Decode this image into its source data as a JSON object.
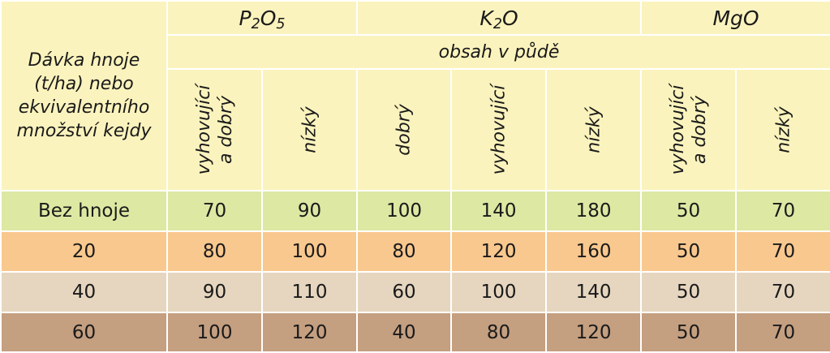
{
  "corner_label": [
    "Dávka hnoje",
    "(t/ha) nebo",
    "ekvivalentního",
    "množství kejdy"
  ],
  "nutrients": {
    "p2o5": {
      "base": "P",
      "sub1": "2",
      "mid": "O",
      "sub2": "5"
    },
    "k2o": {
      "base": "K",
      "sub1": "2",
      "mid": "O"
    },
    "mgo": {
      "label": "MgO"
    }
  },
  "subheader": "obsah v půdě",
  "columns": [
    [
      "vyhovující",
      "a dobrý"
    ],
    [
      "nízký"
    ],
    [
      "dobrý"
    ],
    [
      "vyhovující"
    ],
    [
      "nízký"
    ],
    [
      "vyhovující",
      "a dobrý"
    ],
    [
      "nízký"
    ]
  ],
  "rows": [
    {
      "label": "Bez hnoje",
      "values": [
        "70",
        "90",
        "100",
        "140",
        "180",
        "50",
        "70"
      ]
    },
    {
      "label": "20",
      "values": [
        "80",
        "100",
        "80",
        "120",
        "160",
        "50",
        "70"
      ]
    },
    {
      "label": "40",
      "values": [
        "90",
        "110",
        "60",
        "100",
        "140",
        "50",
        "70"
      ]
    },
    {
      "label": "60",
      "values": [
        "100",
        "120",
        "40",
        "80",
        "120",
        "50",
        "70"
      ]
    }
  ],
  "colors": {
    "header": "#fbf3bd",
    "row_bez_hnoje": "#dde8a3",
    "row_20": "#f9c88e",
    "row_40": "#e6d6bf",
    "row_60": "#c49f80"
  }
}
